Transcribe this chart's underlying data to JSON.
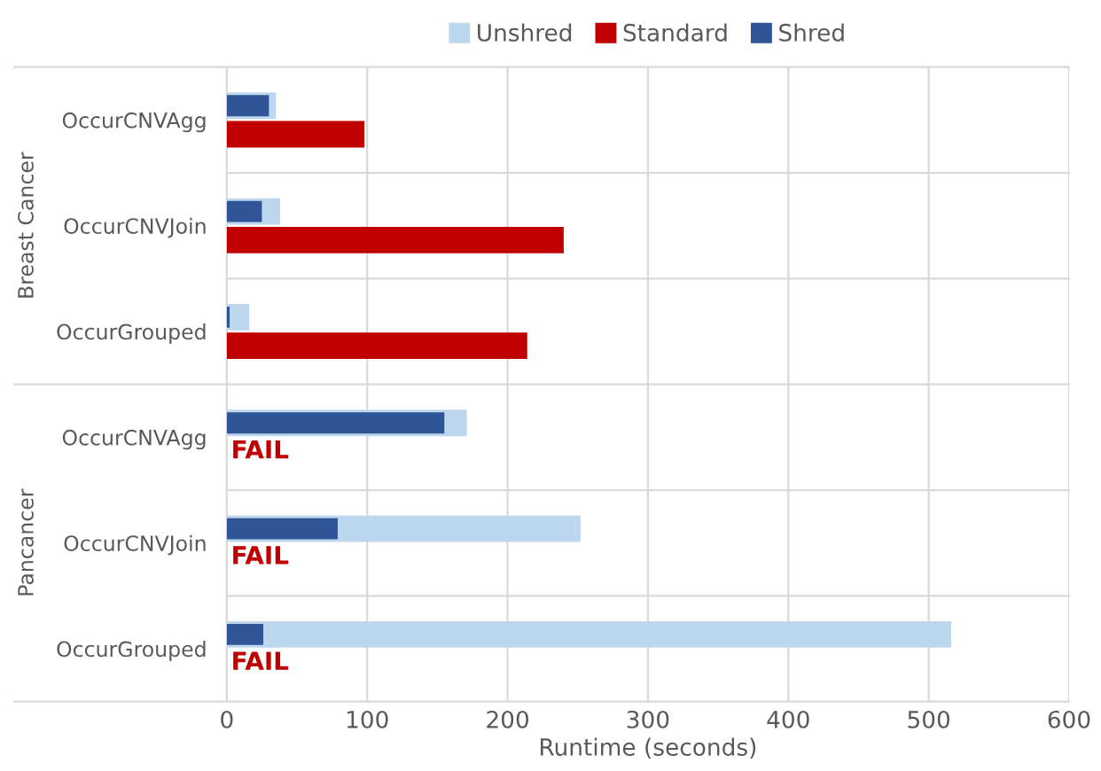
{
  "chart_data": {
    "type": "bar",
    "orientation": "horizontal",
    "categories": [
      "OccurCNVAgg",
      "OccurCNVJoin",
      "OccurGrouped",
      "OccurCNVAgg",
      "OccurCNVJoin",
      "OccurGrouped"
    ],
    "series": [
      {
        "name": "Unshred",
        "color": "#bdd7ee",
        "values": [
          35,
          38,
          16,
          171,
          252,
          516
        ]
      },
      {
        "name": "Standard",
        "color": "#c00000",
        "values": [
          98,
          240,
          214,
          null,
          null,
          null
        ],
        "value_labels": [
          null,
          null,
          null,
          "FAIL",
          "FAIL",
          "FAIL"
        ]
      },
      {
        "name": "Shred",
        "color": "#2f5597",
        "values": [
          30,
          25,
          2,
          155,
          79,
          26
        ]
      }
    ],
    "annotations": [
      "Breast Cancer",
      "Pancancer"
    ],
    "xlabel": "Runtime (seconds)",
    "xlim": [
      0,
      600
    ],
    "xticks": [
      0,
      100,
      200,
      300,
      400,
      500,
      600
    ],
    "grid": "x",
    "legend": "top"
  }
}
